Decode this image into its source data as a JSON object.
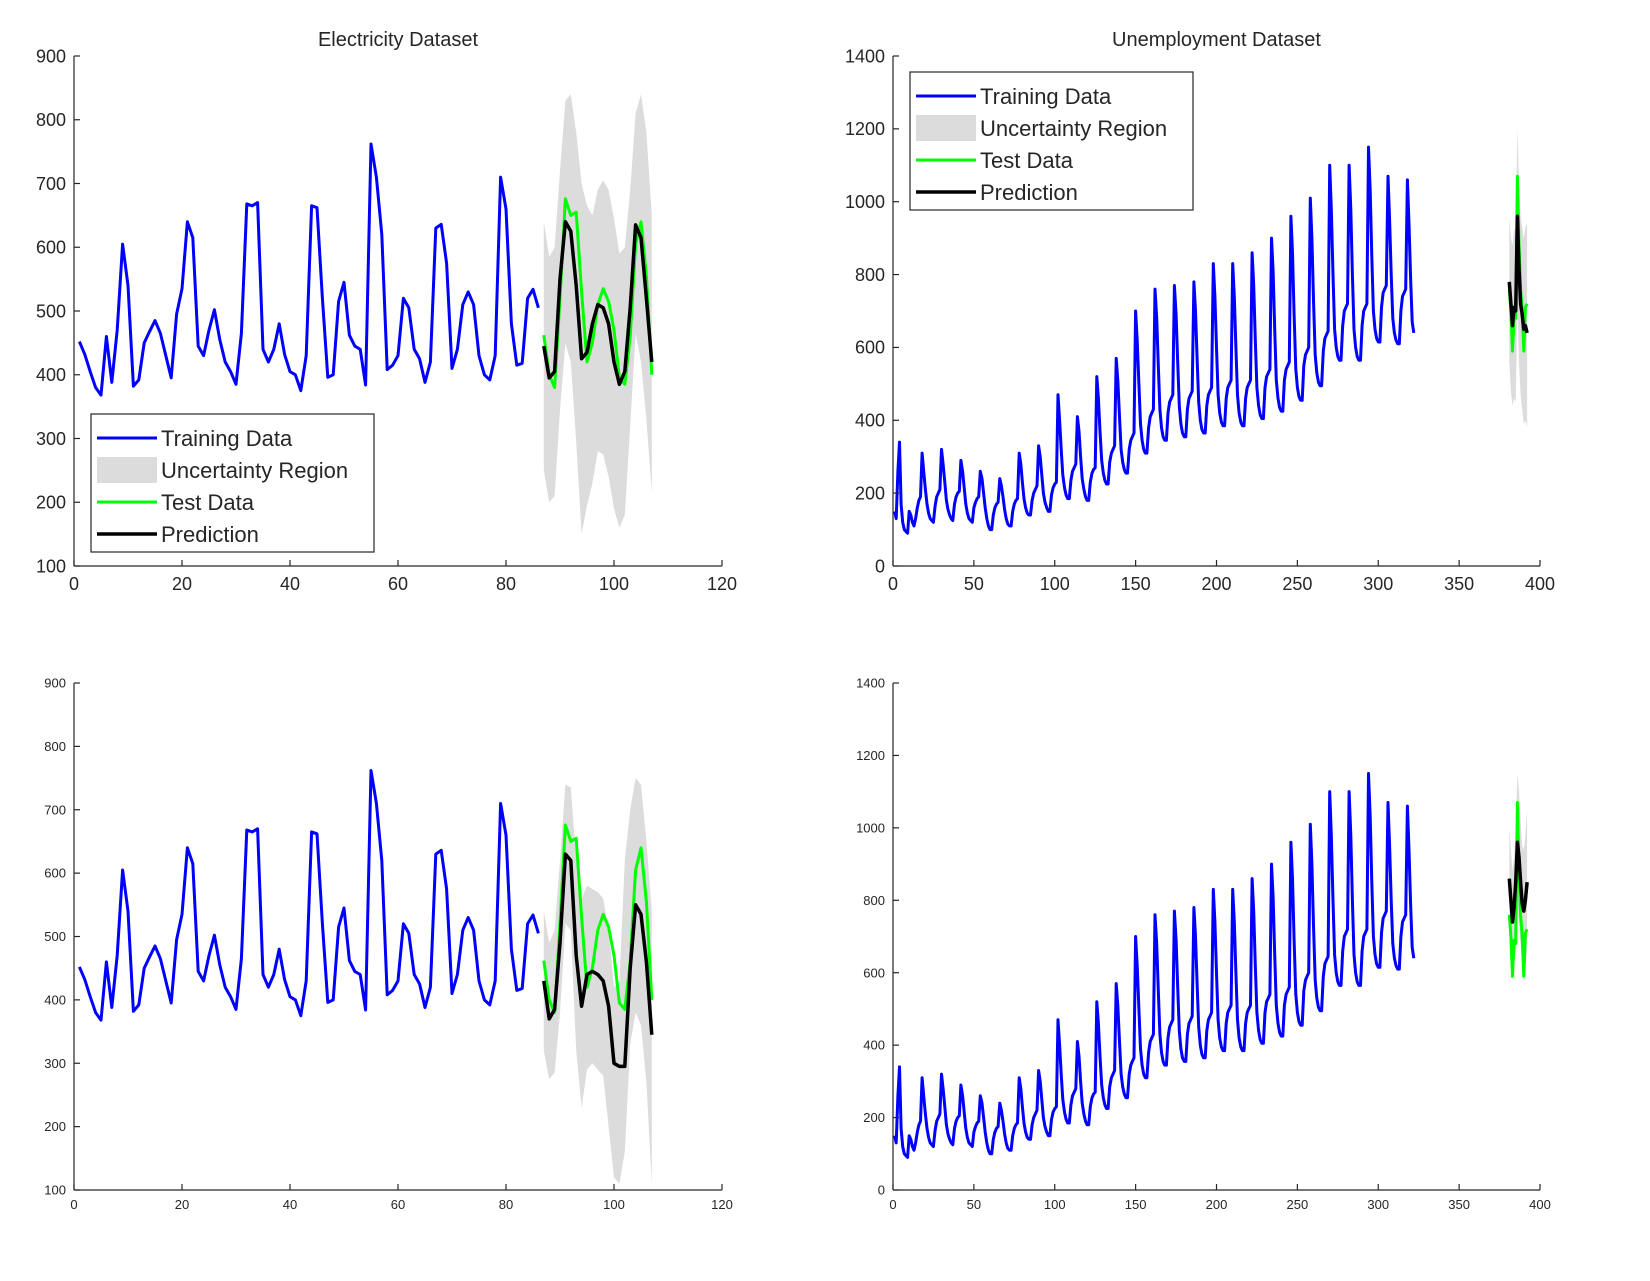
{
  "figure": {
    "type": "2x2 subplot grid of time-series forecasts"
  },
  "colors": {
    "training": "#0000ff",
    "test": "#00ff00",
    "prediction": "#000000",
    "uncertainty": "#dcdcdc"
  },
  "legend_labels": [
    "Training Data",
    "Uncertainty Region",
    "Test Data",
    "Prediction"
  ],
  "chart_data": [
    {
      "type": "line",
      "panel": "top-left",
      "title": "Electricity Dataset",
      "xlabel": "",
      "ylabel": "",
      "xlim": [
        0,
        120
      ],
      "ylim": [
        100,
        900
      ],
      "xticks": [
        0,
        20,
        40,
        60,
        80,
        100,
        120
      ],
      "yticks": [
        100,
        200,
        300,
        400,
        500,
        600,
        700,
        800,
        900
      ],
      "legend": {
        "position": "lower-left"
      },
      "training": {
        "name": "Training Data",
        "x_start": 1,
        "values": [
          452,
          432,
          405,
          380,
          368,
          460,
          388,
          470,
          605,
          540,
          382,
          392,
          450,
          468,
          485,
          465,
          430,
          395,
          495,
          535,
          640,
          615,
          445,
          430,
          470,
          502,
          455,
          420,
          405,
          385,
          465,
          668,
          665,
          670,
          440,
          420,
          440,
          480,
          432,
          405,
          400,
          375,
          430,
          665,
          662,
          520,
          396,
          400,
          515,
          545,
          462,
          445,
          440,
          384,
          762,
          710,
          620,
          408,
          415,
          430,
          520,
          505,
          440,
          425,
          388,
          420,
          630,
          636,
          575,
          410,
          440,
          510,
          530,
          510,
          430,
          400,
          392,
          430,
          710,
          660,
          480,
          415,
          418,
          520,
          534,
          505
        ],
        "trend_per_step": 0
      },
      "test": {
        "name": "Test Data",
        "x_start": 87,
        "values": [
          462,
          400,
          380,
          520,
          676,
          650,
          655,
          530,
          420,
          450,
          510,
          535,
          515,
          470,
          395,
          385,
          460,
          605,
          640,
          555,
          400
        ]
      },
      "prediction": {
        "name": "Prediction",
        "x_start": 87,
        "values": [
          445,
          395,
          405,
          550,
          640,
          625,
          540,
          425,
          435,
          480,
          510,
          505,
          480,
          420,
          385,
          405,
          505,
          635,
          615,
          520,
          420
        ]
      },
      "uncertainty": {
        "name": "Uncertainty Region",
        "x_start": 87,
        "upper": [
          640,
          585,
          600,
          720,
          830,
          840,
          780,
          700,
          665,
          650,
          690,
          705,
          690,
          645,
          590,
          600,
          690,
          810,
          840,
          780,
          650
        ],
        "lower": [
          250,
          200,
          210,
          345,
          450,
          420,
          295,
          150,
          195,
          230,
          280,
          275,
          240,
          190,
          160,
          180,
          320,
          465,
          420,
          330,
          215
        ]
      }
    },
    {
      "type": "line",
      "panel": "top-right",
      "title": "Unemployment Dataset",
      "xlabel": "",
      "ylabel": "",
      "xlim": [
        0,
        400
      ],
      "ylim": [
        0,
        1400
      ],
      "xticks": [
        0,
        50,
        100,
        150,
        200,
        250,
        300,
        350,
        400
      ],
      "yticks": [
        0,
        200,
        400,
        600,
        800,
        1000,
        1200,
        1400
      ],
      "legend": {
        "position": "upper-left"
      },
      "training": {
        "name": "Training Data",
        "x_start": 1,
        "values": [
          150,
          130,
          260,
          340,
          170,
          120,
          100,
          95,
          90,
          150,
          140,
          120,
          110,
          130,
          160,
          180,
          190,
          310,
          260,
          210,
          170,
          145,
          130,
          125,
          120,
          165,
          190,
          200,
          210,
          320,
          280,
          230,
          180,
          155,
          140,
          130,
          125,
          170,
          190,
          200,
          205,
          290,
          260,
          215,
          170,
          145,
          130,
          125,
          120,
          160,
          175,
          185,
          190,
          260,
          240,
          200,
          160,
          130,
          110,
          100,
          100,
          140,
          160,
          170,
          175,
          240,
          220,
          190,
          155,
          130,
          115,
          110,
          110,
          150,
          170,
          180,
          185,
          310,
          280,
          230,
          185,
          160,
          145,
          140,
          140,
          180,
          200,
          210,
          220,
          330,
          300,
          250,
          200,
          175,
          160,
          150,
          150,
          195,
          215,
          225,
          230,
          470,
          400,
          320,
          250,
          215,
          195,
          185,
          185,
          235,
          260,
          270,
          280,
          410,
          370,
          300,
          240,
          210,
          190,
          180,
          180,
          230,
          255,
          265,
          270,
          520,
          460,
          370,
          290,
          255,
          235,
          225,
          225,
          285,
          310,
          320,
          330,
          570,
          510,
          410,
          320,
          285,
          265,
          255,
          255,
          320,
          345,
          355,
          365,
          700,
          620,
          500,
          390,
          345,
          320,
          310,
          310,
          380,
          410,
          420,
          430,
          760,
          680,
          550,
          430,
          380,
          355,
          345,
          345,
          420,
          450,
          460,
          470,
          770,
          690,
          560,
          440,
          390,
          365,
          355,
          355,
          430,
          460,
          470,
          480,
          780,
          700,
          570,
          450,
          400,
          375,
          365,
          365,
          440,
          470,
          480,
          490,
          830,
          740,
          600,
          470,
          420,
          395,
          385,
          385,
          460,
          490,
          500,
          510,
          830,
          740,
          600,
          470,
          420,
          395,
          385,
          385,
          460,
          490,
          500,
          510,
          860,
          770,
          620,
          490,
          440,
          415,
          405,
          405,
          490,
          520,
          530,
          540,
          900,
          810,
          650,
          510,
          460,
          435,
          425,
          425,
          510,
          540,
          550,
          560,
          960,
          860,
          690,
          540,
          490,
          465,
          455,
          455,
          550,
          580,
          590,
          600,
          1010,
          900,
          730,
          580,
          530,
          505,
          495,
          495,
          590,
          625,
          635,
          645,
          1100,
          980,
          800,
          650,
          600,
          575,
          565,
          565,
          660,
          700,
          710,
          720,
          1100,
          980,
          800,
          650,
          600,
          575,
          565,
          565,
          660,
          700,
          710,
          720,
          1150,
          1030,
          850,
          700,
          650,
          625,
          615,
          615,
          710,
          750,
          760,
          770,
          1070,
          950,
          800,
          680,
          640,
          620,
          610,
          610,
          700,
          740,
          750,
          760,
          1060,
          940,
          790,
          670,
          640
        ],
        "trend_per_step": 0
      },
      "test": {
        "name": "Test Data",
        "x_start": 381,
        "values": [
          760,
          700,
          590,
          690,
          680,
          1070,
          880,
          760,
          700,
          590,
          710,
          720
        ]
      },
      "prediction": {
        "name": "Prediction",
        "x_start": 381,
        "values": [
          780,
          720,
          660,
          710,
          700,
          960,
          820,
          720,
          690,
          650,
          660,
          640
        ]
      },
      "uncertainty": {
        "name": "Uncertainty Region",
        "x_start": 381,
        "upper": [
          960,
          900,
          880,
          920,
          930,
          1200,
          1050,
          960,
          930,
          900,
          930,
          940
        ],
        "lower": [
          560,
          480,
          440,
          460,
          450,
          720,
          560,
          470,
          430,
          390,
          400,
          380
        ]
      }
    },
    {
      "type": "line",
      "panel": "bottom-left",
      "title": "",
      "xlabel": "",
      "ylabel": "",
      "xlim": [
        0,
        120
      ],
      "ylim": [
        100,
        900
      ],
      "xticks": [
        0,
        20,
        40,
        60,
        80,
        100,
        120
      ],
      "yticks": [
        100,
        200,
        300,
        400,
        500,
        600,
        700,
        800,
        900
      ],
      "legend": null,
      "training": {
        "name": "Training Data",
        "x_start": 1,
        "values": [
          452,
          432,
          405,
          380,
          368,
          460,
          388,
          470,
          605,
          540,
          382,
          392,
          450,
          468,
          485,
          465,
          430,
          395,
          495,
          535,
          640,
          615,
          445,
          430,
          470,
          502,
          455,
          420,
          405,
          385,
          465,
          668,
          665,
          670,
          440,
          420,
          440,
          480,
          432,
          405,
          400,
          375,
          430,
          665,
          662,
          520,
          396,
          400,
          515,
          545,
          462,
          445,
          440,
          384,
          762,
          710,
          620,
          408,
          415,
          430,
          520,
          505,
          440,
          425,
          388,
          420,
          630,
          636,
          575,
          410,
          440,
          510,
          530,
          510,
          430,
          400,
          392,
          430,
          710,
          660,
          480,
          415,
          418,
          520,
          534,
          505
        ],
        "trend_per_step": 0
      },
      "test": {
        "name": "Test Data",
        "x_start": 87,
        "values": [
          462,
          400,
          380,
          520,
          676,
          650,
          655,
          530,
          420,
          450,
          510,
          535,
          515,
          470,
          395,
          385,
          460,
          605,
          640,
          555,
          400
        ]
      },
      "prediction": {
        "name": "Prediction",
        "x_start": 87,
        "values": [
          430,
          370,
          385,
          490,
          630,
          620,
          470,
          390,
          440,
          445,
          440,
          430,
          390,
          300,
          295,
          295,
          450,
          550,
          535,
          460,
          345
        ]
      },
      "uncertainty": {
        "name": "Uncertainty Region",
        "x_start": 87,
        "upper": [
          540,
          490,
          510,
          620,
          740,
          735,
          620,
          560,
          580,
          575,
          570,
          560,
          510,
          420,
          430,
          620,
          700,
          750,
          740,
          650,
          540
        ],
        "lower": [
          320,
          275,
          285,
          380,
          520,
          510,
          320,
          230,
          290,
          300,
          290,
          280,
          200,
          120,
          110,
          160,
          330,
          380,
          360,
          270,
          110
        ]
      }
    },
    {
      "type": "line",
      "panel": "bottom-right",
      "title": "",
      "xlabel": "",
      "ylabel": "",
      "xlim": [
        0,
        400
      ],
      "ylim": [
        0,
        1400
      ],
      "xticks": [
        0,
        50,
        100,
        150,
        200,
        250,
        300,
        350,
        400
      ],
      "yticks": [
        0,
        200,
        400,
        600,
        800,
        1000,
        1200,
        1400
      ],
      "legend": null,
      "training": {
        "name": "Training Data",
        "x_start": 1,
        "same_as_panel": 1
      },
      "test": {
        "name": "Test Data",
        "x_start": 381,
        "values": [
          760,
          700,
          590,
          690,
          680,
          1070,
          880,
          760,
          700,
          590,
          710,
          720
        ]
      },
      "prediction": {
        "name": "Prediction",
        "x_start": 381,
        "values": [
          860,
          800,
          740,
          780,
          850,
          960,
          920,
          850,
          790,
          770,
          800,
          850
        ]
      },
      "uncertainty": {
        "name": "Uncertainty Region",
        "x_start": 381,
        "upper": [
          1000,
          940,
          880,
          920,
          990,
          1150,
          1100,
          1020,
          950,
          940,
          980,
          1050
        ],
        "lower": [
          720,
          650,
          600,
          620,
          660,
          780,
          740,
          680,
          630,
          610,
          630,
          660
        ]
      }
    }
  ]
}
